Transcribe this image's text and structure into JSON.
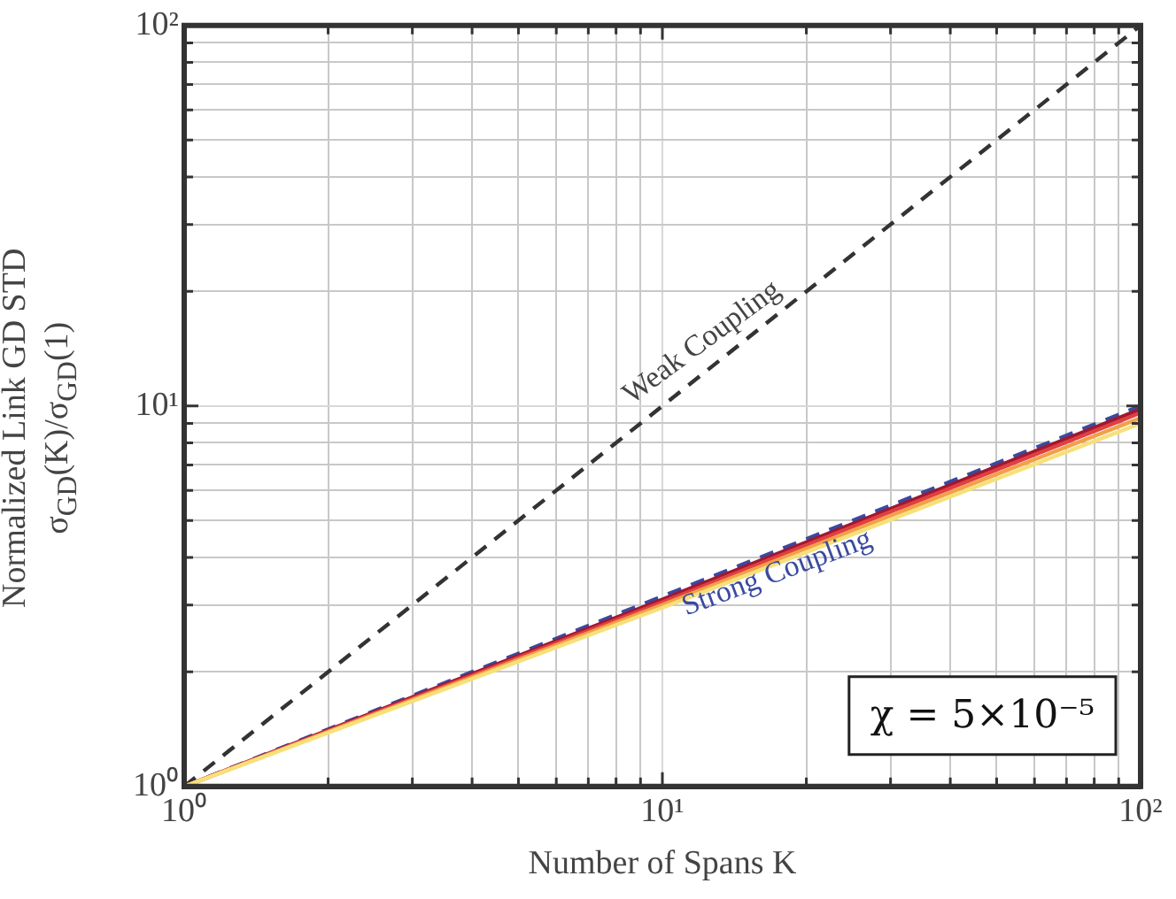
{
  "chart_data": {
    "type": "line",
    "xlabel": "Number of Spans K",
    "ylabel": "Normalized Link GD STD\nσ$_{GD}$(K)/σ$_{GD}$(1)",
    "log": "xy",
    "grid": true,
    "legend": false,
    "marker": "none",
    "xlim": [
      1,
      100
    ],
    "ylim": [
      1,
      100
    ],
    "xticks": [
      {
        "value": 1,
        "label": "10⁰"
      },
      {
        "value": 2,
        "label": null
      },
      {
        "value": 3,
        "label": null
      },
      {
        "value": 4,
        "label": null
      },
      {
        "value": 5,
        "label": null
      },
      {
        "value": 6,
        "label": null
      },
      {
        "value": 7,
        "label": null
      },
      {
        "value": 8,
        "label": null
      },
      {
        "value": 9,
        "label": null
      },
      {
        "value": 10,
        "label": "10¹"
      },
      {
        "value": 20,
        "label": null
      },
      {
        "value": 30,
        "label": null
      },
      {
        "value": 40,
        "label": null
      },
      {
        "value": 50,
        "label": null
      },
      {
        "value": 60,
        "label": null
      },
      {
        "value": 70,
        "label": null
      },
      {
        "value": 80,
        "label": null
      },
      {
        "value": 90,
        "label": null
      },
      {
        "value": 100,
        "label": "10²"
      }
    ],
    "yticks": [
      {
        "value": 1,
        "label": "10⁰"
      },
      {
        "value": 2,
        "label": null
      },
      {
        "value": 3,
        "label": null
      },
      {
        "value": 4,
        "label": null
      },
      {
        "value": 5,
        "label": null
      },
      {
        "value": 6,
        "label": null
      },
      {
        "value": 7,
        "label": null
      },
      {
        "value": 8,
        "label": null
      },
      {
        "value": 9,
        "label": null
      },
      {
        "value": 10,
        "label": "10¹"
      },
      {
        "value": 20,
        "label": null
      },
      {
        "value": 30,
        "label": null
      },
      {
        "value": 40,
        "label": null
      },
      {
        "value": 50,
        "label": null
      },
      {
        "value": 60,
        "label": null
      },
      {
        "value": 70,
        "label": null
      },
      {
        "value": 80,
        "label": null
      },
      {
        "value": 90,
        "label": null
      },
      {
        "value": 100,
        "label": "10²"
      }
    ],
    "x": [
      1,
      10,
      100
    ],
    "series": [
      {
        "color": "#f7e07a",
        "values": [
          1,
          2.95,
          9.0
        ]
      },
      {
        "color": "#f2a04a",
        "values": [
          1,
          3.0,
          9.3
        ]
      },
      {
        "color": "#e04040",
        "values": [
          1,
          3.05,
          9.6
        ]
      },
      {
        "color": "#a01830",
        "values": [
          1,
          3.1,
          9.8
        ]
      },
      {
        "color": "#3a4aa0",
        "values": [
          1,
          3.16,
          10
        ],
        "line_style": "dashed"
      },
      {
        "color": "#333333",
        "values": [
          1,
          10,
          100
        ],
        "line_style": "dashed"
      }
    ],
    "annotations": [
      {
        "text": "Weak Coupling",
        "x": 13,
        "y": 13
      },
      "Strong Coupling",
      "χ = 5×10⁻⁵"
    ]
  }
}
